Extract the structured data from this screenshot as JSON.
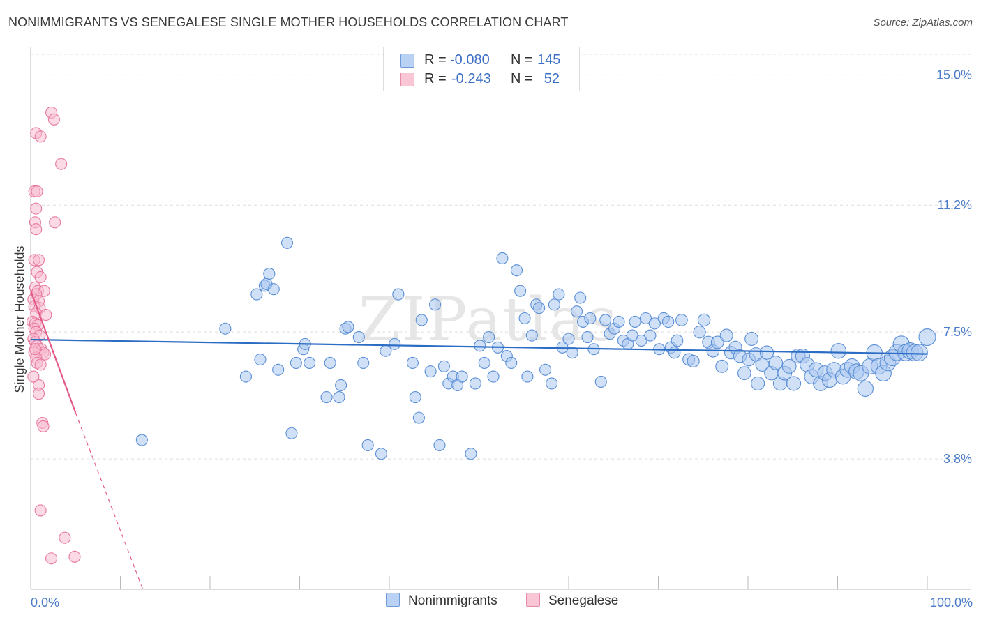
{
  "header": {
    "title": "NONIMMIGRANTS VS SENEGALESE SINGLE MOTHER HOUSEHOLDS CORRELATION CHART",
    "source": "Source: ZipAtlas.com"
  },
  "legend": {
    "rows": [
      {
        "r_label": "R = ",
        "r_value": "-0.080",
        "n_label": "N = ",
        "n_value": "145"
      },
      {
        "r_label": "R = ",
        "r_value": "-0.243",
        "n_label": "N = ",
        "n_value": "52"
      }
    ]
  },
  "watermark": "ZIPatlas",
  "colors": {
    "blue_fill": "#a9c7f0",
    "blue_stroke": "#5b8fd6",
    "blue_line": "#2b6cc4",
    "pink_fill": "#f7bcd0",
    "pink_stroke": "#e8799f",
    "pink_line": "#e3588a",
    "grid": "#dddddd",
    "tick_text": "#4a7cc9"
  },
  "chart_data": {
    "type": "scatter",
    "title": "NONIMMIGRANTS VS SENEGALESE SINGLE MOTHER HOUSEHOLDS CORRELATION CHART",
    "xlabel": "",
    "ylabel": "Single Mother Households",
    "xlim": [
      0,
      100
    ],
    "ylim": [
      0,
      15.8
    ],
    "x_tick_labels": [
      "0.0%",
      "100.0%"
    ],
    "y_ticks": [
      3.8,
      7.5,
      11.2,
      15.0
    ],
    "y_tick_labels": [
      "3.8%",
      "7.5%",
      "11.2%",
      "15.0%"
    ],
    "grid": true,
    "legend_position": "top-center",
    "series": [
      {
        "name": "Nonimmigrants",
        "R": -0.08,
        "N": 145,
        "trend": {
          "x": [
            0,
            100
          ],
          "y": [
            7.28,
            6.86
          ]
        },
        "points": [
          [
            12.4,
            4.35
          ],
          [
            21.7,
            7.6
          ],
          [
            24.0,
            6.2
          ],
          [
            25.2,
            8.6
          ],
          [
            25.6,
            6.7
          ],
          [
            26.1,
            8.85
          ],
          [
            26.3,
            8.9
          ],
          [
            26.6,
            9.2
          ],
          [
            27.1,
            8.75
          ],
          [
            27.6,
            6.4
          ],
          [
            28.6,
            10.1
          ],
          [
            29.1,
            4.55
          ],
          [
            29.6,
            6.6
          ],
          [
            30.4,
            7.0
          ],
          [
            30.6,
            7.15
          ],
          [
            31.1,
            6.6
          ],
          [
            33.0,
            5.6
          ],
          [
            33.4,
            6.6
          ],
          [
            34.4,
            5.6
          ],
          [
            34.6,
            5.95
          ],
          [
            35.1,
            7.6
          ],
          [
            35.4,
            7.65
          ],
          [
            36.6,
            7.35
          ],
          [
            37.1,
            6.6
          ],
          [
            37.6,
            4.2
          ],
          [
            39.1,
            3.95
          ],
          [
            39.6,
            6.95
          ],
          [
            40.6,
            7.15
          ],
          [
            41.0,
            8.6
          ],
          [
            42.6,
            6.6
          ],
          [
            42.9,
            5.6
          ],
          [
            43.3,
            5.0
          ],
          [
            43.6,
            7.85
          ],
          [
            44.6,
            6.35
          ],
          [
            45.1,
            8.3
          ],
          [
            45.6,
            4.2
          ],
          [
            46.1,
            6.5
          ],
          [
            46.6,
            6.0
          ],
          [
            47.1,
            6.2
          ],
          [
            47.6,
            5.95
          ],
          [
            48.1,
            6.2
          ],
          [
            49.1,
            3.95
          ],
          [
            49.6,
            6.0
          ],
          [
            50.1,
            7.1
          ],
          [
            50.6,
            6.6
          ],
          [
            51.1,
            7.35
          ],
          [
            51.6,
            6.2
          ],
          [
            52.1,
            7.05
          ],
          [
            52.6,
            9.65
          ],
          [
            53.1,
            6.8
          ],
          [
            53.6,
            6.6
          ],
          [
            54.2,
            9.3
          ],
          [
            54.6,
            8.7
          ],
          [
            55.1,
            7.9
          ],
          [
            55.4,
            6.2
          ],
          [
            55.9,
            7.4
          ],
          [
            56.4,
            8.3
          ],
          [
            56.7,
            8.2
          ],
          [
            57.4,
            6.4
          ],
          [
            58.1,
            6.0
          ],
          [
            58.4,
            8.3
          ],
          [
            58.9,
            8.6
          ],
          [
            59.3,
            7.05
          ],
          [
            60.0,
            7.3
          ],
          [
            60.4,
            6.9
          ],
          [
            60.9,
            8.1
          ],
          [
            61.3,
            8.5
          ],
          [
            61.6,
            7.8
          ],
          [
            62.1,
            7.35
          ],
          [
            62.4,
            7.9
          ],
          [
            62.8,
            7.0
          ],
          [
            63.6,
            6.05
          ],
          [
            64.1,
            7.85
          ],
          [
            64.6,
            7.45
          ],
          [
            65.1,
            7.6
          ],
          [
            65.6,
            7.8
          ],
          [
            66.1,
            7.25
          ],
          [
            66.6,
            7.15
          ],
          [
            67.1,
            7.4
          ],
          [
            67.4,
            7.8
          ],
          [
            68.1,
            7.25
          ],
          [
            68.6,
            7.9
          ],
          [
            69.1,
            7.4
          ],
          [
            69.6,
            7.75
          ],
          [
            70.1,
            7.0
          ],
          [
            70.6,
            7.9
          ],
          [
            71.1,
            7.8
          ],
          [
            71.4,
            7.05
          ],
          [
            71.8,
            6.9
          ],
          [
            72.1,
            7.25
          ],
          [
            72.6,
            7.85
          ],
          [
            73.4,
            6.7
          ],
          [
            73.9,
            6.65
          ],
          [
            74.6,
            7.5
          ],
          [
            75.1,
            7.85
          ],
          [
            75.6,
            7.2
          ],
          [
            76.1,
            6.95
          ],
          [
            76.6,
            7.2
          ],
          [
            77.1,
            6.5
          ],
          [
            77.6,
            7.4
          ],
          [
            78.1,
            6.9
          ],
          [
            78.6,
            7.05
          ],
          [
            79.1,
            6.8
          ],
          [
            79.6,
            6.3
          ],
          [
            80.1,
            6.7
          ],
          [
            80.4,
            7.3
          ],
          [
            80.9,
            6.85
          ],
          [
            81.1,
            6.0
          ],
          [
            81.6,
            6.55
          ],
          [
            82.1,
            6.9
          ],
          [
            82.6,
            6.3
          ],
          [
            83.1,
            6.6
          ],
          [
            83.6,
            6.0
          ],
          [
            84.1,
            6.3
          ],
          [
            84.6,
            6.5
          ],
          [
            85.1,
            6.0
          ],
          [
            85.6,
            6.8
          ],
          [
            86.1,
            6.8
          ],
          [
            86.6,
            6.55
          ],
          [
            87.1,
            6.2
          ],
          [
            87.6,
            6.4
          ],
          [
            88.1,
            6.0
          ],
          [
            88.6,
            6.3
          ],
          [
            89.1,
            6.1
          ],
          [
            89.6,
            6.4
          ],
          [
            90.1,
            6.95
          ],
          [
            90.6,
            6.2
          ],
          [
            91.1,
            6.4
          ],
          [
            91.6,
            6.5
          ],
          [
            92.1,
            6.35
          ],
          [
            92.6,
            6.3
          ],
          [
            93.1,
            5.85
          ],
          [
            93.6,
            6.5
          ],
          [
            94.1,
            6.9
          ],
          [
            94.6,
            6.5
          ],
          [
            95.1,
            6.3
          ],
          [
            95.6,
            6.6
          ],
          [
            96.1,
            6.75
          ],
          [
            96.6,
            6.9
          ],
          [
            97.1,
            7.15
          ],
          [
            97.6,
            6.9
          ],
          [
            98.1,
            6.95
          ],
          [
            98.6,
            6.9
          ],
          [
            99.1,
            6.9
          ],
          [
            100.0,
            7.35
          ]
        ]
      },
      {
        "name": "Senegalese",
        "R": -0.243,
        "N": 52,
        "trend": {
          "x": [
            0,
            5
          ],
          "y": [
            8.7,
            5.15
          ]
        },
        "trend_ext": {
          "x": [
            5,
            12.5
          ],
          "y": [
            5.15,
            0.0
          ]
        },
        "points": [
          [
            2.3,
            13.9
          ],
          [
            2.6,
            13.7
          ],
          [
            0.6,
            13.3
          ],
          [
            1.1,
            13.2
          ],
          [
            3.4,
            12.4
          ],
          [
            0.4,
            11.6
          ],
          [
            0.7,
            11.6
          ],
          [
            0.6,
            11.1
          ],
          [
            0.5,
            10.7
          ],
          [
            2.7,
            10.7
          ],
          [
            0.6,
            10.5
          ],
          [
            0.4,
            9.6
          ],
          [
            0.9,
            9.6
          ],
          [
            0.7,
            9.25
          ],
          [
            1.1,
            9.1
          ],
          [
            0.5,
            8.8
          ],
          [
            0.8,
            8.7
          ],
          [
            1.5,
            8.7
          ],
          [
            0.6,
            8.6
          ],
          [
            0.3,
            8.45
          ],
          [
            0.9,
            8.4
          ],
          [
            0.4,
            8.25
          ],
          [
            1.0,
            8.2
          ],
          [
            0.6,
            8.05
          ],
          [
            1.7,
            8.0
          ],
          [
            0.2,
            7.8
          ],
          [
            0.5,
            7.75
          ],
          [
            0.8,
            7.7
          ],
          [
            0.4,
            7.6
          ],
          [
            0.6,
            7.5
          ],
          [
            1.0,
            7.4
          ],
          [
            0.3,
            7.3
          ],
          [
            0.5,
            7.2
          ],
          [
            0.7,
            7.1
          ],
          [
            0.9,
            7.0
          ],
          [
            1.2,
            7.0
          ],
          [
            1.4,
            6.9
          ],
          [
            1.6,
            6.85
          ],
          [
            0.4,
            6.9
          ],
          [
            0.6,
            6.75
          ],
          [
            0.7,
            6.6
          ],
          [
            1.1,
            6.55
          ],
          [
            0.9,
            5.95
          ],
          [
            0.9,
            5.7
          ],
          [
            1.3,
            4.85
          ],
          [
            1.4,
            4.75
          ],
          [
            1.1,
            2.3
          ],
          [
            3.8,
            1.5
          ],
          [
            2.3,
            0.9
          ],
          [
            4.9,
            0.95
          ],
          [
            0.3,
            6.2
          ],
          [
            0.5,
            7.0
          ]
        ]
      }
    ]
  }
}
